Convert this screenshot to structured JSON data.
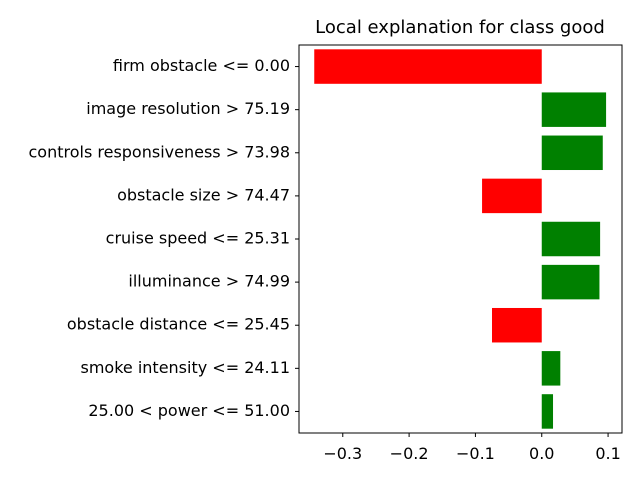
{
  "chart_data": {
    "type": "bar",
    "orientation": "horizontal",
    "title": "Local explanation for class good",
    "categories": [
      "firm obstacle <= 0.00",
      "image resolution > 75.19",
      "controls responsiveness > 73.98",
      "obstacle size > 74.47",
      "cruise speed <= 25.31",
      "illuminance > 74.99",
      "obstacle distance <= 25.45",
      "smoke intensity <= 24.11",
      "25.00 < power <= 51.00"
    ],
    "values": [
      -0.343,
      0.097,
      0.092,
      -0.09,
      0.088,
      0.087,
      -0.075,
      0.028,
      0.017
    ],
    "xlim": [
      -0.366,
      0.121
    ],
    "xticks": [
      -0.3,
      -0.2,
      -0.1,
      0.0,
      0.1
    ],
    "xtick_labels": [
      "−0.3",
      "−0.2",
      "−0.1",
      "0.0",
      "0.1"
    ],
    "xlabel": "",
    "ylabel": "",
    "grid": false,
    "colors": {
      "positive": "#008000",
      "negative": "#ff0000",
      "axis": "#000000"
    }
  }
}
